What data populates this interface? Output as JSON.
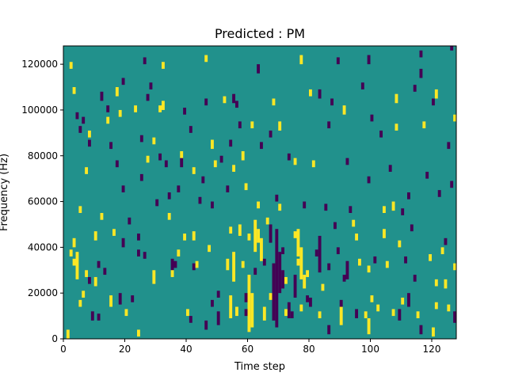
{
  "chart_data": {
    "type": "heatmap",
    "title": "Predicted : PM",
    "xlabel": "Time step",
    "ylabel": "Frequency (Hz)",
    "xlim": [
      0,
      128
    ],
    "ylim": [
      0,
      128000
    ],
    "x_ticks": [
      0,
      20,
      40,
      60,
      80,
      100,
      120
    ],
    "x_tick_labels": [
      "0",
      "20",
      "40",
      "60",
      "80",
      "100",
      "120"
    ],
    "y_ticks": [
      0,
      20000,
      40000,
      60000,
      80000,
      100000,
      120000
    ],
    "y_tick_labels": [
      "0",
      "20000",
      "40000",
      "60000",
      "80000",
      "100000",
      "120000"
    ],
    "grid": false,
    "colormap": "viridis",
    "colors": {
      "background": "#21918c",
      "low": "#440154",
      "high": "#fde725"
    },
    "x_bins": 128,
    "y_bins": 128,
    "y_bin_width": 1000,
    "note_cells": [
      {
        "t": 1,
        "f_start": 0,
        "f_end": 4000,
        "value": "high"
      },
      {
        "t": 3,
        "f_start": 40000,
        "f_end": 44000,
        "value": "high"
      },
      {
        "t": 4,
        "f_start": 26000,
        "f_end": 38000,
        "value": "high"
      },
      {
        "t": 5,
        "f_start": 55000,
        "f_end": 58000,
        "value": "high"
      },
      {
        "t": 6,
        "f_start": 18000,
        "f_end": 21000,
        "value": "high"
      },
      {
        "t": 9,
        "f_start": 8000,
        "f_end": 12000,
        "value": "low"
      },
      {
        "t": 10,
        "f_start": 23000,
        "f_end": 27000,
        "value": "high"
      },
      {
        "t": 10,
        "f_start": 43000,
        "f_end": 47000,
        "value": "high"
      },
      {
        "t": 15,
        "f_start": 14000,
        "f_end": 19000,
        "value": "high"
      },
      {
        "t": 18,
        "f_start": 15000,
        "f_end": 20000,
        "value": "low"
      },
      {
        "t": 19,
        "f_start": 40000,
        "f_end": 44000,
        "value": "low"
      },
      {
        "t": 24,
        "f_start": 1000,
        "f_end": 4000,
        "value": "high"
      },
      {
        "t": 29,
        "f_start": 24000,
        "f_end": 30000,
        "value": "high"
      },
      {
        "t": 35,
        "f_start": 30000,
        "f_end": 35000,
        "value": "low"
      },
      {
        "t": 38,
        "f_start": 75000,
        "f_end": 79000,
        "value": "low"
      },
      {
        "t": 42,
        "f_start": 43000,
        "f_end": 47000,
        "value": "high"
      },
      {
        "t": 46,
        "f_start": 4000,
        "f_end": 8000,
        "value": "low"
      },
      {
        "t": 48,
        "f_start": 83000,
        "f_end": 87000,
        "value": "high"
      },
      {
        "t": 50,
        "f_start": 6000,
        "f_end": 12000,
        "value": "low"
      },
      {
        "t": 53,
        "f_start": 30000,
        "f_end": 35000,
        "value": "high"
      },
      {
        "t": 54,
        "f_start": 9000,
        "f_end": 19000,
        "value": "high"
      },
      {
        "t": 55,
        "f_start": 25000,
        "f_end": 38000,
        "value": "high"
      },
      {
        "t": 56,
        "f_start": 10000,
        "f_end": 14000,
        "value": "high"
      },
      {
        "t": 57,
        "f_start": 45000,
        "f_end": 50000,
        "value": "high"
      },
      {
        "t": 58,
        "f_start": 78000,
        "f_end": 82000,
        "value": "high"
      },
      {
        "t": 59,
        "f_start": 16000,
        "f_end": 20000,
        "value": "low"
      },
      {
        "t": 60,
        "f_start": 3000,
        "f_end": 28000,
        "value": "high"
      },
      {
        "t": 61,
        "f_start": 5000,
        "f_end": 20000,
        "value": "high"
      },
      {
        "t": 62,
        "f_start": 38000,
        "f_end": 52000,
        "value": "high"
      },
      {
        "t": 63,
        "f_start": 42000,
        "f_end": 48000,
        "value": "high"
      },
      {
        "t": 64,
        "f_start": 34000,
        "f_end": 44000,
        "value": "high"
      },
      {
        "t": 65,
        "f_start": 8000,
        "f_end": 14000,
        "value": "high"
      },
      {
        "t": 67,
        "f_start": 42000,
        "f_end": 50000,
        "value": "low"
      },
      {
        "t": 68,
        "f_start": 8000,
        "f_end": 33000,
        "value": "low"
      },
      {
        "t": 69,
        "f_start": 5000,
        "f_end": 48000,
        "value": "low"
      },
      {
        "t": 70,
        "f_start": 20000,
        "f_end": 38000,
        "value": "low"
      },
      {
        "t": 71,
        "f_start": 22000,
        "f_end": 30000,
        "value": "low"
      },
      {
        "t": 73,
        "f_start": 9000,
        "f_end": 16000,
        "value": "low"
      },
      {
        "t": 75,
        "f_start": 18000,
        "f_end": 28000,
        "value": "low"
      },
      {
        "t": 76,
        "f_start": 36000,
        "f_end": 48000,
        "value": "high"
      },
      {
        "t": 77,
        "f_start": 26000,
        "f_end": 40000,
        "value": "high"
      },
      {
        "t": 78,
        "f_start": 22000,
        "f_end": 28000,
        "value": "high"
      },
      {
        "t": 80,
        "f_start": 14000,
        "f_end": 18000,
        "value": "low"
      },
      {
        "t": 83,
        "f_start": 29000,
        "f_end": 45000,
        "value": "low"
      },
      {
        "t": 86,
        "f_start": 2000,
        "f_end": 6000,
        "value": "low"
      },
      {
        "t": 90,
        "f_start": 6000,
        "f_end": 14000,
        "value": "high"
      },
      {
        "t": 92,
        "f_start": 26000,
        "f_end": 34000,
        "value": "low"
      },
      {
        "t": 95,
        "f_start": 9000,
        "f_end": 13000,
        "value": "low"
      },
      {
        "t": 99,
        "f_start": 2000,
        "f_end": 9000,
        "value": "high"
      },
      {
        "t": 104,
        "f_start": 44000,
        "f_end": 48000,
        "value": "high"
      },
      {
        "t": 107,
        "f_start": 56000,
        "f_end": 60000,
        "value": "high"
      },
      {
        "t": 109,
        "f_start": 8000,
        "f_end": 13000,
        "value": "low"
      },
      {
        "t": 112,
        "f_start": 14000,
        "f_end": 20000,
        "value": "low"
      },
      {
        "t": 116,
        "f_start": 2000,
        "f_end": 6000,
        "value": "low"
      },
      {
        "t": 120,
        "f_start": 1000,
        "f_end": 5000,
        "value": "high"
      },
      {
        "t": 124,
        "f_start": 22000,
        "f_end": 26000,
        "value": "high"
      },
      {
        "t": 127,
        "f_start": 7000,
        "f_end": 12000,
        "value": "low"
      },
      {
        "t": 12,
        "f_start": 104000,
        "f_end": 108000,
        "value": "low"
      },
      {
        "t": 17,
        "f_start": 106000,
        "f_end": 110000,
        "value": "high"
      },
      {
        "t": 26,
        "f_start": 120000,
        "f_end": 123000,
        "value": "low"
      },
      {
        "t": 32,
        "f_start": 100000,
        "f_end": 104000,
        "value": "high"
      },
      {
        "t": 39,
        "f_start": 98000,
        "f_end": 101000,
        "value": "low"
      },
      {
        "t": 46,
        "f_start": 121000,
        "f_end": 124000,
        "value": "high"
      },
      {
        "t": 55,
        "f_start": 103000,
        "f_end": 107000,
        "value": "low"
      },
      {
        "t": 63,
        "f_start": 116000,
        "f_end": 120000,
        "value": "low"
      },
      {
        "t": 70,
        "f_start": 91000,
        "f_end": 95000,
        "value": "high"
      },
      {
        "t": 77,
        "f_start": 120000,
        "f_end": 124000,
        "value": "high"
      },
      {
        "t": 83,
        "f_start": 105000,
        "f_end": 109000,
        "value": "low"
      },
      {
        "t": 91,
        "f_start": 98000,
        "f_end": 102000,
        "value": "high"
      },
      {
        "t": 99,
        "f_start": 120000,
        "f_end": 124000,
        "value": "low"
      },
      {
        "t": 108,
        "f_start": 103000,
        "f_end": 107000,
        "value": "high"
      },
      {
        "t": 116,
        "f_start": 114000,
        "f_end": 118000,
        "value": "low"
      },
      {
        "t": 121,
        "f_start": 105000,
        "f_end": 109000,
        "value": "high"
      },
      {
        "t": 126,
        "f_start": 126000,
        "f_end": 128000,
        "value": "low"
      }
    ],
    "note": "note_cells lists representative cells; remaining scattered cells are listed in scatter_cells (t, f_bin, value)",
    "scatter_cells": [
      [
        2,
        118,
        "high"
      ],
      [
        3,
        107,
        "high"
      ],
      [
        4,
        96,
        "low"
      ],
      [
        5,
        90,
        "low"
      ],
      [
        6,
        94,
        "low"
      ],
      [
        7,
        72,
        "high"
      ],
      [
        8,
        88,
        "high"
      ],
      [
        2,
        36,
        "high"
      ],
      [
        3,
        32,
        "high"
      ],
      [
        5,
        14,
        "high"
      ],
      [
        7,
        27,
        "high"
      ],
      [
        8,
        24,
        "low"
      ],
      [
        8,
        84,
        "low"
      ],
      [
        11,
        8,
        "low"
      ],
      [
        11,
        31,
        "low"
      ],
      [
        12,
        52,
        "high"
      ],
      [
        13,
        28,
        "low"
      ],
      [
        14,
        99,
        "low"
      ],
      [
        14,
        94,
        "high"
      ],
      [
        15,
        83,
        "low"
      ],
      [
        16,
        45,
        "high"
      ],
      [
        17,
        75,
        "low"
      ],
      [
        18,
        97,
        "high"
      ],
      [
        19,
        64,
        "low"
      ],
      [
        19,
        111,
        "low"
      ],
      [
        20,
        10,
        "high"
      ],
      [
        21,
        50,
        "low"
      ],
      [
        22,
        16,
        "low"
      ],
      [
        23,
        99,
        "high"
      ],
      [
        24,
        43,
        "low"
      ],
      [
        24,
        36,
        "low"
      ],
      [
        25,
        86,
        "low"
      ],
      [
        25,
        69,
        "low"
      ],
      [
        26,
        35,
        "low"
      ],
      [
        27,
        104,
        "low"
      ],
      [
        27,
        77,
        "high"
      ],
      [
        28,
        109,
        "low"
      ],
      [
        29,
        85,
        "high"
      ],
      [
        30,
        58,
        "low"
      ],
      [
        31,
        99,
        "high"
      ],
      [
        31,
        78,
        "low"
      ],
      [
        32,
        118,
        "high"
      ],
      [
        33,
        75,
        "low"
      ],
      [
        34,
        61,
        "low"
      ],
      [
        34,
        52,
        "high"
      ],
      [
        35,
        27,
        "high"
      ],
      [
        36,
        31,
        "low"
      ],
      [
        37,
        64,
        "low"
      ],
      [
        37,
        36,
        "high"
      ],
      [
        38,
        79,
        "high"
      ],
      [
        39,
        43,
        "high"
      ],
      [
        40,
        10,
        "high"
      ],
      [
        41,
        7,
        "low"
      ],
      [
        41,
        90,
        "low"
      ],
      [
        42,
        30,
        "low"
      ],
      [
        42,
        72,
        "high"
      ],
      [
        43,
        31,
        "high"
      ],
      [
        44,
        59,
        "low"
      ],
      [
        45,
        68,
        "low"
      ],
      [
        46,
        102,
        "low"
      ],
      [
        47,
        38,
        "high"
      ],
      [
        48,
        57,
        "low"
      ],
      [
        48,
        14,
        "low"
      ],
      [
        49,
        75,
        "high"
      ],
      [
        50,
        18,
        "low"
      ],
      [
        51,
        77,
        "low"
      ],
      [
        52,
        103,
        "high"
      ],
      [
        53,
        64,
        "low"
      ],
      [
        54,
        84,
        "low"
      ],
      [
        54,
        46,
        "high"
      ],
      [
        55,
        73,
        "high"
      ],
      [
        56,
        101,
        "low"
      ],
      [
        57,
        92,
        "low"
      ],
      [
        58,
        31,
        "high"
      ],
      [
        59,
        10,
        "low"
      ],
      [
        59,
        65,
        "high"
      ],
      [
        60,
        43,
        "high"
      ],
      [
        61,
        92,
        "high"
      ],
      [
        62,
        28,
        "low"
      ],
      [
        63,
        57,
        "high"
      ],
      [
        64,
        83,
        "low"
      ],
      [
        65,
        32,
        "low"
      ],
      [
        66,
        50,
        "high"
      ],
      [
        67,
        88,
        "low"
      ],
      [
        67,
        17,
        "high"
      ],
      [
        68,
        102,
        "high"
      ],
      [
        69,
        60,
        "low"
      ],
      [
        70,
        56,
        "high"
      ],
      [
        71,
        37,
        "low"
      ],
      [
        72,
        24,
        "high"
      ],
      [
        72,
        10,
        "high"
      ],
      [
        73,
        78,
        "low"
      ],
      [
        74,
        9,
        "low"
      ],
      [
        75,
        44,
        "high"
      ],
      [
        75,
        76,
        "high"
      ],
      [
        76,
        32,
        "high"
      ],
      [
        77,
        12,
        "high"
      ],
      [
        78,
        57,
        "low"
      ],
      [
        79,
        27,
        "high"
      ],
      [
        79,
        16,
        "low"
      ],
      [
        80,
        106,
        "high"
      ],
      [
        81,
        75,
        "high"
      ],
      [
        82,
        36,
        "low"
      ],
      [
        83,
        9,
        "high"
      ],
      [
        84,
        21,
        "high"
      ],
      [
        85,
        56,
        "low"
      ],
      [
        86,
        30,
        "low"
      ],
      [
        86,
        92,
        "low"
      ],
      [
        87,
        102,
        "low"
      ],
      [
        88,
        48,
        "low"
      ],
      [
        89,
        37,
        "low"
      ],
      [
        89,
        120,
        "low"
      ],
      [
        90,
        14,
        "low"
      ],
      [
        91,
        25,
        "low"
      ],
      [
        92,
        76,
        "low"
      ],
      [
        93,
        55,
        "low"
      ],
      [
        94,
        49,
        "high"
      ],
      [
        95,
        43,
        "high"
      ],
      [
        96,
        32,
        "high"
      ],
      [
        97,
        109,
        "low"
      ],
      [
        98,
        9,
        "high"
      ],
      [
        99,
        29,
        "high"
      ],
      [
        99,
        68,
        "low"
      ],
      [
        100,
        95,
        "low"
      ],
      [
        100,
        16,
        "high"
      ],
      [
        101,
        33,
        "low"
      ],
      [
        102,
        12,
        "high"
      ],
      [
        103,
        88,
        "low"
      ],
      [
        104,
        55,
        "high"
      ],
      [
        105,
        31,
        "high"
      ],
      [
        106,
        73,
        "low"
      ],
      [
        107,
        10,
        "high"
      ],
      [
        108,
        91,
        "high"
      ],
      [
        109,
        40,
        "high"
      ],
      [
        110,
        54,
        "low"
      ],
      [
        110,
        15,
        "high"
      ],
      [
        111,
        33,
        "low"
      ],
      [
        112,
        61,
        "low"
      ],
      [
        113,
        47,
        "low"
      ],
      [
        114,
        25,
        "low"
      ],
      [
        114,
        108,
        "low"
      ],
      [
        115,
        9,
        "high"
      ],
      [
        116,
        123,
        "low"
      ],
      [
        117,
        92,
        "high"
      ],
      [
        118,
        70,
        "low"
      ],
      [
        119,
        34,
        "high"
      ],
      [
        120,
        102,
        "low"
      ],
      [
        121,
        23,
        "high"
      ],
      [
        121,
        13,
        "high"
      ],
      [
        122,
        62,
        "low"
      ],
      [
        123,
        37,
        "high"
      ],
      [
        124,
        41,
        "low"
      ],
      [
        125,
        12,
        "high"
      ],
      [
        125,
        83,
        "low"
      ],
      [
        126,
        66,
        "low"
      ],
      [
        127,
        30,
        "high"
      ],
      [
        127,
        95,
        "high"
      ]
    ]
  }
}
